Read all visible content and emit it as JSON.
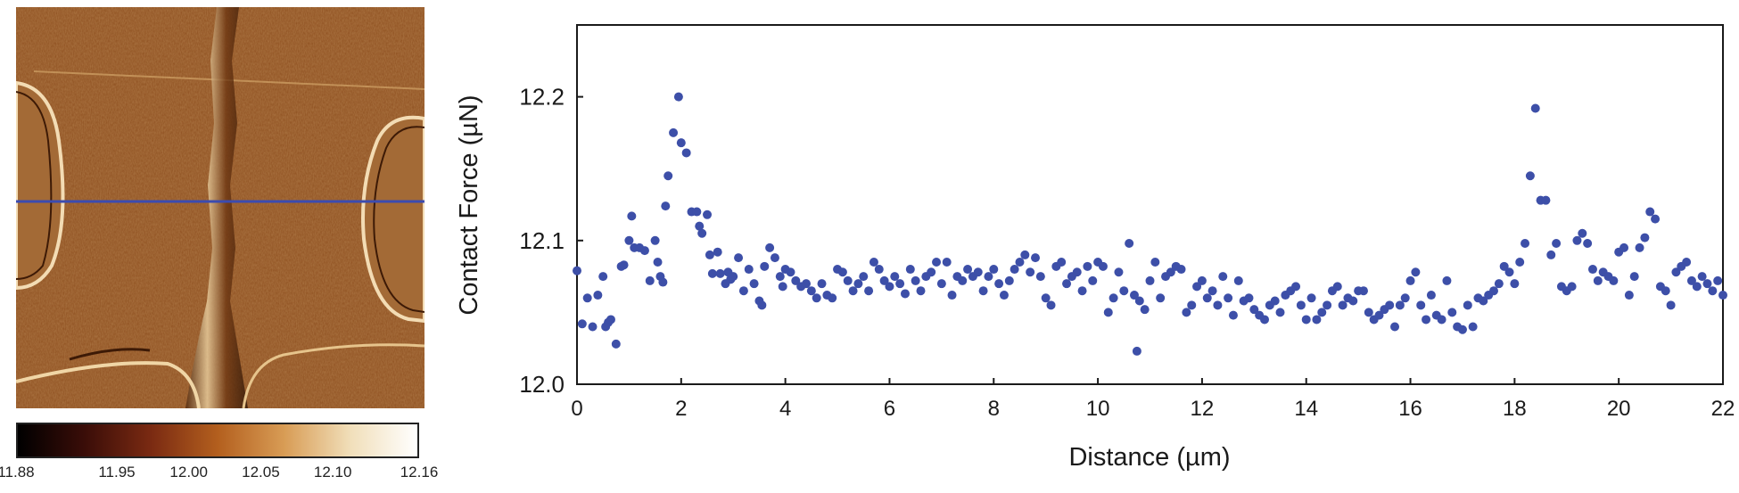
{
  "colorbar": {
    "ticks": [
      {
        "label": "11.88",
        "value": 11.88
      },
      {
        "label": "11.95",
        "value": 11.95
      },
      {
        "label": "12.00",
        "value": 12.0
      },
      {
        "label": "12.05",
        "value": 12.05
      },
      {
        "label": "12.10",
        "value": 12.1
      },
      {
        "label": "12.16",
        "value": 12.16
      }
    ],
    "range": [
      11.88,
      12.16
    ],
    "colors": [
      "#000000",
      "#3a0d08",
      "#7a2a12",
      "#b35f1e",
      "#d89c55",
      "#f1dfba",
      "#ffffff"
    ]
  },
  "afm_image": {
    "profile_line_color": "#3b4bb0",
    "base_color": "#8a4a1c"
  },
  "chart_data": {
    "type": "scatter",
    "xlabel": "Distance (µm)",
    "ylabel": "Contact Force (µN)",
    "xlim": [
      0,
      22
    ],
    "ylim": [
      12.0,
      12.25
    ],
    "xticks": [
      0,
      2,
      4,
      6,
      8,
      10,
      12,
      14,
      16,
      18,
      20,
      22
    ],
    "yticks": [
      12.0,
      12.1,
      12.2
    ],
    "ytick_labels": [
      "12.0",
      "12.1",
      "12.2"
    ],
    "grid": false,
    "marker_color": "#3d4fa8",
    "points": [
      [
        0.0,
        12.079
      ],
      [
        0.1,
        12.042
      ],
      [
        0.2,
        12.06
      ],
      [
        0.3,
        12.04
      ],
      [
        0.4,
        12.062
      ],
      [
        0.5,
        12.075
      ],
      [
        0.55,
        12.04
      ],
      [
        0.6,
        12.043
      ],
      [
        0.65,
        12.045
      ],
      [
        0.75,
        12.028
      ],
      [
        0.85,
        12.082
      ],
      [
        0.9,
        12.083
      ],
      [
        1.0,
        12.1
      ],
      [
        1.05,
        12.117
      ],
      [
        1.1,
        12.095
      ],
      [
        1.2,
        12.095
      ],
      [
        1.3,
        12.093
      ],
      [
        1.4,
        12.072
      ],
      [
        1.5,
        12.1
      ],
      [
        1.55,
        12.085
      ],
      [
        1.6,
        12.075
      ],
      [
        1.65,
        12.071
      ],
      [
        1.7,
        12.124
      ],
      [
        1.75,
        12.145
      ],
      [
        1.85,
        12.175
      ],
      [
        1.95,
        12.2
      ],
      [
        2.0,
        12.168
      ],
      [
        2.1,
        12.161
      ],
      [
        2.2,
        12.12
      ],
      [
        2.3,
        12.12
      ],
      [
        2.35,
        12.11
      ],
      [
        2.4,
        12.105
      ],
      [
        2.5,
        12.118
      ],
      [
        2.55,
        12.09
      ],
      [
        2.6,
        12.077
      ],
      [
        2.7,
        12.092
      ],
      [
        2.75,
        12.077
      ],
      [
        2.85,
        12.07
      ],
      [
        2.9,
        12.078
      ],
      [
        2.95,
        12.073
      ],
      [
        3.0,
        12.075
      ],
      [
        3.1,
        12.088
      ],
      [
        3.2,
        12.065
      ],
      [
        3.3,
        12.08
      ],
      [
        3.4,
        12.07
      ],
      [
        3.5,
        12.058
      ],
      [
        3.55,
        12.055
      ],
      [
        3.6,
        12.082
      ],
      [
        3.7,
        12.095
      ],
      [
        3.8,
        12.088
      ],
      [
        3.9,
        12.075
      ],
      [
        3.95,
        12.068
      ],
      [
        4.0,
        12.08
      ],
      [
        4.1,
        12.078
      ],
      [
        4.2,
        12.072
      ],
      [
        4.3,
        12.068
      ],
      [
        4.4,
        12.07
      ],
      [
        4.5,
        12.065
      ],
      [
        4.6,
        12.06
      ],
      [
        4.7,
        12.07
      ],
      [
        4.8,
        12.062
      ],
      [
        4.9,
        12.06
      ],
      [
        5.0,
        12.08
      ],
      [
        5.1,
        12.078
      ],
      [
        5.2,
        12.072
      ],
      [
        5.3,
        12.065
      ],
      [
        5.4,
        12.07
      ],
      [
        5.5,
        12.075
      ],
      [
        5.6,
        12.065
      ],
      [
        5.7,
        12.085
      ],
      [
        5.8,
        12.08
      ],
      [
        5.9,
        12.072
      ],
      [
        6.0,
        12.068
      ],
      [
        6.1,
        12.075
      ],
      [
        6.2,
        12.07
      ],
      [
        6.3,
        12.063
      ],
      [
        6.4,
        12.08
      ],
      [
        6.5,
        12.072
      ],
      [
        6.6,
        12.065
      ],
      [
        6.7,
        12.075
      ],
      [
        6.8,
        12.078
      ],
      [
        6.9,
        12.085
      ],
      [
        7.0,
        12.07
      ],
      [
        7.1,
        12.085
      ],
      [
        7.2,
        12.062
      ],
      [
        7.3,
        12.075
      ],
      [
        7.4,
        12.072
      ],
      [
        7.5,
        12.08
      ],
      [
        7.6,
        12.075
      ],
      [
        7.7,
        12.078
      ],
      [
        7.8,
        12.065
      ],
      [
        7.9,
        12.075
      ],
      [
        8.0,
        12.08
      ],
      [
        8.1,
        12.07
      ],
      [
        8.2,
        12.062
      ],
      [
        8.3,
        12.072
      ],
      [
        8.4,
        12.08
      ],
      [
        8.5,
        12.085
      ],
      [
        8.6,
        12.09
      ],
      [
        8.7,
        12.078
      ],
      [
        8.8,
        12.088
      ],
      [
        8.9,
        12.075
      ],
      [
        9.0,
        12.06
      ],
      [
        9.1,
        12.055
      ],
      [
        9.2,
        12.082
      ],
      [
        9.3,
        12.085
      ],
      [
        9.4,
        12.07
      ],
      [
        9.5,
        12.075
      ],
      [
        9.6,
        12.078
      ],
      [
        9.7,
        12.065
      ],
      [
        9.8,
        12.082
      ],
      [
        9.9,
        12.072
      ],
      [
        10.0,
        12.085
      ],
      [
        10.1,
        12.082
      ],
      [
        10.2,
        12.05
      ],
      [
        10.3,
        12.06
      ],
      [
        10.4,
        12.078
      ],
      [
        10.5,
        12.065
      ],
      [
        10.6,
        12.098
      ],
      [
        10.7,
        12.062
      ],
      [
        10.75,
        12.023
      ],
      [
        10.8,
        12.058
      ],
      [
        10.9,
        12.052
      ],
      [
        11.0,
        12.072
      ],
      [
        11.1,
        12.085
      ],
      [
        11.2,
        12.06
      ],
      [
        11.3,
        12.075
      ],
      [
        11.4,
        12.078
      ],
      [
        11.5,
        12.082
      ],
      [
        11.6,
        12.08
      ],
      [
        11.7,
        12.05
      ],
      [
        11.8,
        12.055
      ],
      [
        11.9,
        12.068
      ],
      [
        12.0,
        12.072
      ],
      [
        12.1,
        12.06
      ],
      [
        12.2,
        12.065
      ],
      [
        12.3,
        12.055
      ],
      [
        12.4,
        12.075
      ],
      [
        12.5,
        12.06
      ],
      [
        12.6,
        12.048
      ],
      [
        12.7,
        12.072
      ],
      [
        12.8,
        12.058
      ],
      [
        12.9,
        12.06
      ],
      [
        13.0,
        12.052
      ],
      [
        13.1,
        12.048
      ],
      [
        13.2,
        12.045
      ],
      [
        13.3,
        12.055
      ],
      [
        13.4,
        12.058
      ],
      [
        13.5,
        12.05
      ],
      [
        13.6,
        12.062
      ],
      [
        13.7,
        12.065
      ],
      [
        13.8,
        12.068
      ],
      [
        13.9,
        12.055
      ],
      [
        14.0,
        12.045
      ],
      [
        14.1,
        12.06
      ],
      [
        14.2,
        12.045
      ],
      [
        14.3,
        12.05
      ],
      [
        14.4,
        12.055
      ],
      [
        14.5,
        12.065
      ],
      [
        14.6,
        12.068
      ],
      [
        14.7,
        12.055
      ],
      [
        14.8,
        12.06
      ],
      [
        14.9,
        12.058
      ],
      [
        15.0,
        12.065
      ],
      [
        15.1,
        12.065
      ],
      [
        15.2,
        12.05
      ],
      [
        15.3,
        12.045
      ],
      [
        15.4,
        12.048
      ],
      [
        15.5,
        12.052
      ],
      [
        15.6,
        12.055
      ],
      [
        15.7,
        12.04
      ],
      [
        15.8,
        12.055
      ],
      [
        15.9,
        12.06
      ],
      [
        16.0,
        12.072
      ],
      [
        16.1,
        12.078
      ],
      [
        16.2,
        12.055
      ],
      [
        16.3,
        12.045
      ],
      [
        16.4,
        12.062
      ],
      [
        16.5,
        12.048
      ],
      [
        16.6,
        12.045
      ],
      [
        16.7,
        12.072
      ],
      [
        16.8,
        12.05
      ],
      [
        16.9,
        12.04
      ],
      [
        17.0,
        12.038
      ],
      [
        17.1,
        12.055
      ],
      [
        17.2,
        12.04
      ],
      [
        17.3,
        12.06
      ],
      [
        17.4,
        12.058
      ],
      [
        17.5,
        12.062
      ],
      [
        17.6,
        12.065
      ],
      [
        17.7,
        12.07
      ],
      [
        17.8,
        12.082
      ],
      [
        17.9,
        12.078
      ],
      [
        18.0,
        12.07
      ],
      [
        18.1,
        12.085
      ],
      [
        18.2,
        12.098
      ],
      [
        18.3,
        12.145
      ],
      [
        18.4,
        12.192
      ],
      [
        18.5,
        12.128
      ],
      [
        18.6,
        12.128
      ],
      [
        18.7,
        12.09
      ],
      [
        18.8,
        12.098
      ],
      [
        18.9,
        12.068
      ],
      [
        19.0,
        12.065
      ],
      [
        19.1,
        12.068
      ],
      [
        19.2,
        12.1
      ],
      [
        19.3,
        12.105
      ],
      [
        19.4,
        12.098
      ],
      [
        19.5,
        12.08
      ],
      [
        19.6,
        12.072
      ],
      [
        19.7,
        12.078
      ],
      [
        19.8,
        12.075
      ],
      [
        19.9,
        12.072
      ],
      [
        20.0,
        12.092
      ],
      [
        20.1,
        12.095
      ],
      [
        20.2,
        12.062
      ],
      [
        20.3,
        12.075
      ],
      [
        20.4,
        12.095
      ],
      [
        20.5,
        12.102
      ],
      [
        20.6,
        12.12
      ],
      [
        20.7,
        12.115
      ],
      [
        20.8,
        12.068
      ],
      [
        20.9,
        12.065
      ],
      [
        21.0,
        12.055
      ],
      [
        21.1,
        12.078
      ],
      [
        21.2,
        12.082
      ],
      [
        21.3,
        12.085
      ],
      [
        21.4,
        12.072
      ],
      [
        21.5,
        12.068
      ],
      [
        21.6,
        12.075
      ],
      [
        21.7,
        12.07
      ],
      [
        21.8,
        12.065
      ],
      [
        21.9,
        12.072
      ],
      [
        22.0,
        12.062
      ]
    ]
  }
}
